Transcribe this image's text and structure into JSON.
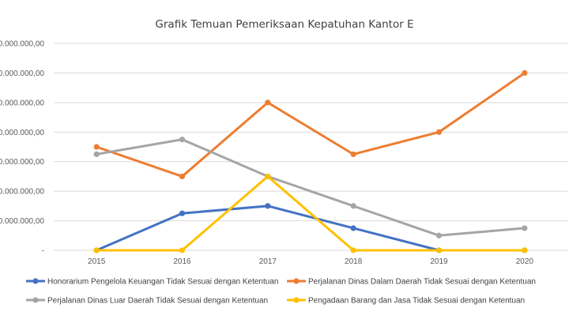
{
  "chart_data": {
    "type": "line",
    "title": "Grafik Temuan Pemeriksaan Kepatuhan Kantor E",
    "xlabel": "",
    "ylabel": "",
    "categories": [
      "2015",
      "2016",
      "2017",
      "2018",
      "2019",
      "2020"
    ],
    "y_tick_labels": [
      "-",
      "0.000.000,00",
      "0.000.000,00",
      "0.000.000,00",
      "0.000.000,00",
      "0.000.000,00",
      "0.000.000,00",
      "0.000.000,00"
    ],
    "ylim": [
      0,
      7
    ],
    "grid": true,
    "legend_position": "bottom",
    "series": [
      {
        "name": "Honorarium Pengelola Keuangan Tidak Sesuai dengan Ketentuan",
        "color": "#4472c4",
        "values": [
          0,
          1.25,
          1.5,
          0.75,
          0,
          0
        ]
      },
      {
        "name": "Perjalanan Dinas Dalam Daerah Tidak Sesuai dengan Ketentuan",
        "color": "#ed7d31",
        "values": [
          3.5,
          2.5,
          5.0,
          3.25,
          4.0,
          6.0
        ]
      },
      {
        "name": "Perjalanan Dinas Luar Daerah Tidak Sesuai dengan Ketentuan",
        "color": "#a5a5a5",
        "values": [
          3.25,
          3.75,
          2.5,
          1.5,
          0.5,
          0.75
        ]
      },
      {
        "name": "Pengadaan Barang dan Jasa Tidak Sesuai dengan Ketentuan",
        "color": "#ffc000",
        "values": [
          0,
          0,
          2.5,
          0,
          0,
          0
        ]
      }
    ]
  }
}
